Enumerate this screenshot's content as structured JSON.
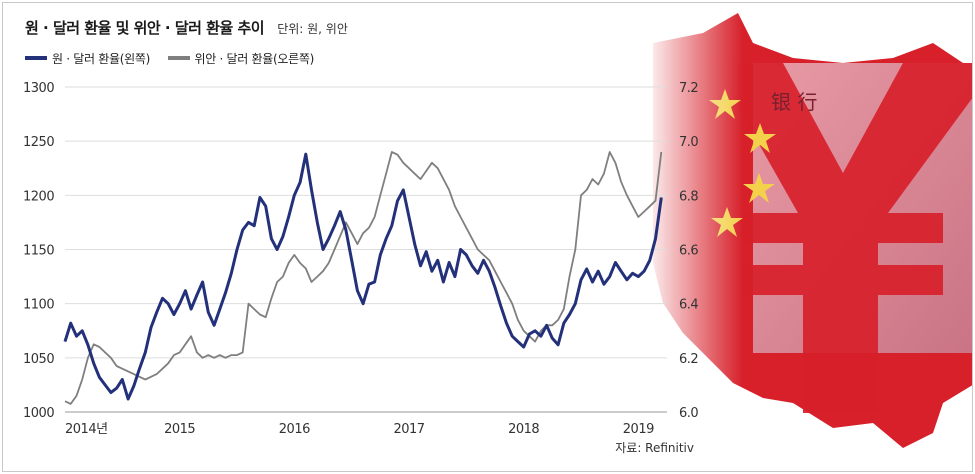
{
  "header": {
    "title": "원 · 달러 환율 및 위안 · 달러 환율 추이",
    "unit": "단위: 원, 위안"
  },
  "legend": {
    "krw_label": "원 · 달러 환율(왼쪽)",
    "cny_label": "위안 · 달러 환율(오른쪽)"
  },
  "source": "자료: Refinitiv",
  "colors": {
    "krw": "#23307a",
    "cny": "#7f7f7f",
    "axis_text": "#333333",
    "grid": "#dedede",
    "flag_red": "#d7202a",
    "star": "#f3d14a"
  },
  "art": {
    "description_icons": [
      "china-map",
      "yuan-banknote",
      "yuan-symbol",
      "stars"
    ],
    "banknote_text": "银 行"
  },
  "chart_data": {
    "type": "line",
    "xlabel": "",
    "ylabel_left": "",
    "ylabel_right": "",
    "x_ticks": [
      "2014년",
      "2015",
      "2016",
      "2017",
      "2018",
      "2019"
    ],
    "x_range": [
      2014.0,
      2019.25
    ],
    "ylim_left": [
      1000,
      1300
    ],
    "ylim_right": [
      6.0,
      7.2
    ],
    "y_ticks_left": [
      1000,
      1050,
      1100,
      1150,
      1200,
      1250,
      1300
    ],
    "y_ticks_right": [
      6.0,
      6.2,
      6.4,
      6.6,
      6.8,
      7.0,
      7.2
    ],
    "grid": true,
    "legend_position": "top-left",
    "series": [
      {
        "name": "원 · 달러 환율(왼쪽)",
        "axis": "left",
        "x": [
          2014.0,
          2014.05,
          2014.1,
          2014.15,
          2014.2,
          2014.25,
          2014.3,
          2014.35,
          2014.4,
          2014.45,
          2014.5,
          2014.55,
          2014.6,
          2014.65,
          2014.7,
          2014.75,
          2014.8,
          2014.85,
          2014.9,
          2014.95,
          2015.0,
          2015.05,
          2015.1,
          2015.15,
          2015.2,
          2015.25,
          2015.3,
          2015.35,
          2015.4,
          2015.45,
          2015.5,
          2015.55,
          2015.6,
          2015.65,
          2015.7,
          2015.75,
          2015.8,
          2015.85,
          2015.9,
          2015.95,
          2016.0,
          2016.05,
          2016.1,
          2016.15,
          2016.2,
          2016.25,
          2016.3,
          2016.35,
          2016.4,
          2016.45,
          2016.5,
          2016.55,
          2016.6,
          2016.65,
          2016.7,
          2016.75,
          2016.8,
          2016.85,
          2016.9,
          2016.95,
          2017.0,
          2017.05,
          2017.1,
          2017.15,
          2017.2,
          2017.25,
          2017.3,
          2017.35,
          2017.4,
          2017.45,
          2017.5,
          2017.55,
          2017.6,
          2017.65,
          2017.7,
          2017.75,
          2017.8,
          2017.85,
          2017.9,
          2017.95,
          2018.0,
          2018.05,
          2018.1,
          2018.15,
          2018.2,
          2018.25,
          2018.3,
          2018.35,
          2018.4,
          2018.45,
          2018.5,
          2018.55,
          2018.6,
          2018.65,
          2018.7,
          2018.75,
          2018.8,
          2018.85,
          2018.9,
          2018.95,
          2019.0,
          2019.05,
          2019.1,
          2019.15,
          2019.2
        ],
        "values": [
          1065,
          1082,
          1070,
          1075,
          1062,
          1045,
          1032,
          1025,
          1018,
          1022,
          1030,
          1012,
          1024,
          1040,
          1055,
          1078,
          1092,
          1105,
          1100,
          1090,
          1100,
          1112,
          1095,
          1108,
          1120,
          1092,
          1080,
          1095,
          1110,
          1128,
          1150,
          1168,
          1175,
          1172,
          1198,
          1190,
          1160,
          1150,
          1162,
          1180,
          1200,
          1212,
          1238,
          1205,
          1175,
          1150,
          1160,
          1172,
          1185,
          1168,
          1140,
          1112,
          1100,
          1118,
          1120,
          1145,
          1160,
          1172,
          1195,
          1205,
          1180,
          1155,
          1135,
          1148,
          1130,
          1140,
          1120,
          1138,
          1125,
          1150,
          1145,
          1135,
          1128,
          1140,
          1130,
          1115,
          1098,
          1082,
          1070,
          1065,
          1060,
          1072,
          1075,
          1070,
          1080,
          1068,
          1062,
          1082,
          1090,
          1100,
          1122,
          1132,
          1120,
          1130,
          1118,
          1125,
          1138,
          1130,
          1122,
          1128,
          1125,
          1130,
          1140,
          1160,
          1198
        ]
      },
      {
        "name": "위안 · 달러 환율(오른쪽)",
        "axis": "right",
        "x": [
          2014.0,
          2014.05,
          2014.1,
          2014.15,
          2014.2,
          2014.25,
          2014.3,
          2014.35,
          2014.4,
          2014.45,
          2014.5,
          2014.55,
          2014.6,
          2014.65,
          2014.7,
          2014.75,
          2014.8,
          2014.85,
          2014.9,
          2014.95,
          2015.0,
          2015.05,
          2015.1,
          2015.15,
          2015.2,
          2015.25,
          2015.3,
          2015.35,
          2015.4,
          2015.45,
          2015.5,
          2015.55,
          2015.6,
          2015.65,
          2015.7,
          2015.75,
          2015.8,
          2015.85,
          2015.9,
          2015.95,
          2016.0,
          2016.05,
          2016.1,
          2016.15,
          2016.2,
          2016.25,
          2016.3,
          2016.35,
          2016.4,
          2016.45,
          2016.5,
          2016.55,
          2016.6,
          2016.65,
          2016.7,
          2016.75,
          2016.8,
          2016.85,
          2016.9,
          2016.95,
          2017.0,
          2017.05,
          2017.1,
          2017.15,
          2017.2,
          2017.25,
          2017.3,
          2017.35,
          2017.4,
          2017.45,
          2017.5,
          2017.55,
          2017.6,
          2017.65,
          2017.7,
          2017.75,
          2017.8,
          2017.85,
          2017.9,
          2017.95,
          2018.0,
          2018.05,
          2018.1,
          2018.15,
          2018.2,
          2018.25,
          2018.3,
          2018.35,
          2018.4,
          2018.45,
          2018.5,
          2018.55,
          2018.6,
          2018.65,
          2018.7,
          2018.75,
          2018.8,
          2018.85,
          2018.9,
          2018.95,
          2019.0,
          2019.05,
          2019.1,
          2019.15,
          2019.2
        ],
        "values": [
          6.04,
          6.03,
          6.06,
          6.12,
          6.2,
          6.25,
          6.24,
          6.22,
          6.2,
          6.17,
          6.16,
          6.15,
          6.14,
          6.13,
          6.12,
          6.13,
          6.14,
          6.16,
          6.18,
          6.21,
          6.22,
          6.25,
          6.28,
          6.22,
          6.2,
          6.21,
          6.2,
          6.21,
          6.2,
          6.21,
          6.21,
          6.22,
          6.4,
          6.38,
          6.36,
          6.35,
          6.42,
          6.48,
          6.5,
          6.55,
          6.58,
          6.55,
          6.53,
          6.48,
          6.5,
          6.52,
          6.55,
          6.6,
          6.65,
          6.7,
          6.66,
          6.62,
          6.66,
          6.68,
          6.72,
          6.8,
          6.88,
          6.96,
          6.95,
          6.92,
          6.9,
          6.88,
          6.86,
          6.89,
          6.92,
          6.9,
          6.86,
          6.82,
          6.76,
          6.72,
          6.68,
          6.64,
          6.6,
          6.58,
          6.56,
          6.52,
          6.48,
          6.44,
          6.4,
          6.34,
          6.3,
          6.28,
          6.26,
          6.3,
          6.32,
          6.32,
          6.34,
          6.38,
          6.5,
          6.6,
          6.8,
          6.82,
          6.86,
          6.84,
          6.88,
          6.96,
          6.92,
          6.85,
          6.8,
          6.76,
          6.72,
          6.74,
          6.76,
          6.78,
          6.96
        ]
      }
    ]
  }
}
